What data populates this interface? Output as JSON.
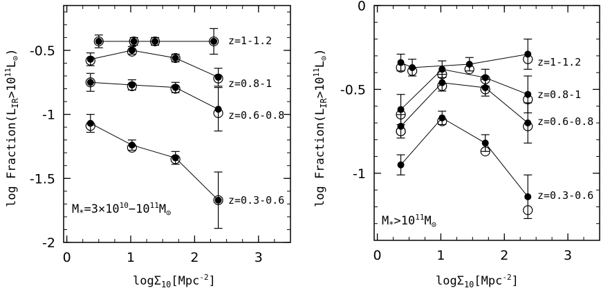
{
  "chart_data": [
    {
      "type": "scatter",
      "xlabel": "logΣ10[Mpc-2]",
      "ylabel": "log Fraction(LIR>10^11 L⊙)",
      "xlim": [
        -0.05,
        3.5
      ],
      "ylim": [
        -2.0,
        -0.15
      ],
      "x_ticks": [
        0,
        1,
        2,
        3
      ],
      "y_ticks": [
        -2,
        -1.5,
        -1,
        -0.5
      ],
      "mass_label": "M*=3×10^10−10^11M⊙",
      "series": [
        {
          "name": "z=1-1.2",
          "x": [
            0.5,
            1.05,
            1.38,
            2.3
          ],
          "y": [
            -0.43,
            -0.43,
            -0.43,
            -0.43
          ],
          "err": [
            0.05,
            0.03,
            0.03,
            0.1
          ],
          "open": [
            -0.43,
            -0.43,
            -0.43,
            -0.43
          ]
        },
        {
          "name": "z=0.8-1",
          "x": [
            0.37,
            1.02,
            1.7,
            2.37
          ],
          "y": [
            -0.57,
            -0.5,
            -0.56,
            -0.71
          ],
          "err": [
            0.05,
            0.03,
            0.03,
            0.07
          ],
          "open": [
            -0.58,
            -0.51,
            -0.56,
            -0.72
          ]
        },
        {
          "name": "z=0.6-0.8",
          "x": [
            0.37,
            1.02,
            1.7,
            2.37
          ],
          "y": [
            -0.75,
            -0.77,
            -0.79,
            -0.96
          ],
          "err": [
            0.07,
            0.04,
            0.04,
            0.17
          ],
          "open": [
            -0.75,
            -0.78,
            -0.8,
            -0.99
          ]
        },
        {
          "name": "z=0.3-0.6",
          "x": [
            0.37,
            1.02,
            1.7,
            2.37
          ],
          "y": [
            -1.07,
            -1.24,
            -1.34,
            -1.67
          ],
          "err": [
            0.07,
            0.04,
            0.05,
            0.22
          ],
          "open": [
            -1.09,
            -1.26,
            -1.35,
            -1.67
          ]
        }
      ]
    },
    {
      "type": "scatter",
      "xlabel": "logΣ10[Mpc-2]",
      "ylabel": "log Fraction(LIR>10^11 L⊙)",
      "xlim": [
        -0.05,
        3.5
      ],
      "ylim": [
        -1.4,
        0.0
      ],
      "x_ticks": [
        0,
        1,
        2,
        3
      ],
      "y_ticks": [
        -1,
        -0.5,
        0
      ],
      "mass_label": "M*>10^11M⊙",
      "series": [
        {
          "name": "z=1-1.2",
          "x": [
            0.37,
            0.55,
            1.45,
            2.37
          ],
          "y": [
            -0.34,
            -0.37,
            -0.35,
            -0.29
          ],
          "err": [
            0.05,
            0.05,
            0.04,
            0.09
          ],
          "open": [
            -0.37,
            -0.39,
            -0.38,
            -0.32
          ]
        },
        {
          "name": "z=0.8-1",
          "x": [
            0.37,
            1.02,
            1.7,
            2.37
          ],
          "y": [
            -0.62,
            -0.38,
            -0.43,
            -0.53
          ],
          "err": [
            0.09,
            0.05,
            0.05,
            0.11
          ],
          "open": [
            -0.65,
            -0.41,
            -0.44,
            -0.56
          ]
        },
        {
          "name": "z=0.6-0.8",
          "x": [
            0.37,
            1.02,
            1.7,
            2.37
          ],
          "y": [
            -0.72,
            -0.46,
            -0.49,
            -0.7
          ],
          "err": [
            0.07,
            0.05,
            0.05,
            0.12
          ],
          "open": [
            -0.75,
            -0.48,
            -0.5,
            -0.72
          ]
        },
        {
          "name": "z=0.3-0.6",
          "x": [
            0.37,
            1.02,
            1.7,
            2.37
          ],
          "y": [
            -0.95,
            -0.67,
            -0.82,
            -1.14
          ],
          "err": [
            0.06,
            0.04,
            0.05,
            0.13
          ],
          "open": [
            -0.75,
            -0.69,
            -0.87,
            -1.22
          ]
        }
      ]
    }
  ],
  "labels": {
    "left_mass": {
      "base": "M",
      "sub": "*",
      "rest": "=3×10",
      "sup1": "10",
      "mid": "−10",
      "sup2": "11",
      "unit": "M",
      "unit_sub": "⊙"
    },
    "right_mass": {
      "base": "M",
      "sub": "*",
      "rest": ">10",
      "sup1": "11",
      "unit": "M",
      "unit_sub": "⊙"
    },
    "xlabel": {
      "pre": "logΣ",
      "sub": "10",
      "unit": "[Mpc",
      "sup": "-2",
      "close": "]"
    },
    "ylabel": {
      "pre": "log Fraction(L",
      "sub": "IR",
      "mid": ">10",
      "sup": "11",
      "unit": "L",
      "unit_sub": "⊙",
      "close": ")"
    }
  }
}
